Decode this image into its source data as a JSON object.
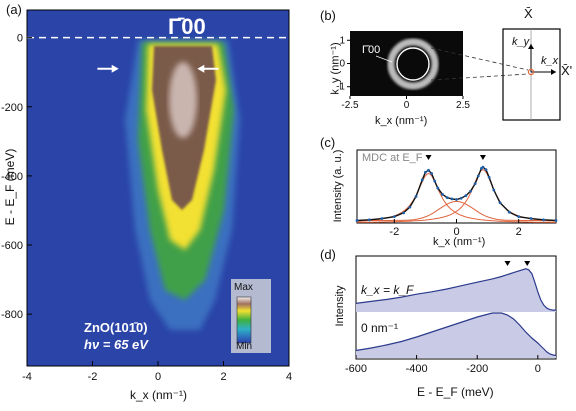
{
  "panel_labels": [
    "(a)",
    "(b)",
    "(c)",
    "(d)"
  ],
  "colors": {
    "band_bg": "#2a44a8",
    "band_mid": "#3fa04a",
    "band_high": "#f2e030",
    "band_peak": "#7a5a4a",
    "mdc_data": "#1f5fa8",
    "mdc_fit": "#111111",
    "mdc_components": "#e0643c",
    "edc_fill": "#c9cbe6",
    "edc_line": "#2b3a8c"
  },
  "chart_data": [
    {
      "panel": "a",
      "type": "heatmap",
      "title": "Γ̄00",
      "xlabel": "k_x (nm⁻¹)",
      "ylabel": "E - E_F (meV)",
      "xlim": [
        -4,
        4
      ],
      "ylim": [
        -950,
        80
      ],
      "x_ticks": [
        "-4",
        "-2",
        "0",
        "2",
        "4"
      ],
      "y_ticks": [
        "0",
        "-200",
        "-400",
        "-600",
        "-800"
      ],
      "fermi_level_meV": 0,
      "kF_markers_meV": -90,
      "annotation_lines": [
        "ZnO(101̄0)",
        "hν = 65 eV"
      ],
      "colorbar": {
        "max_label": "Max",
        "min_label": "Min"
      }
    },
    {
      "panel": "b",
      "type": "heatmap",
      "xlabel": "k_x (nm⁻¹)",
      "ylabel": "k_y (nm⁻¹)",
      "xlim": [
        -2.5,
        2.5
      ],
      "ylim": [
        -1.4,
        1.4
      ],
      "x_ticks": [
        "-2.5",
        "0",
        "2.5"
      ],
      "y_ticks": [
        "1",
        "0",
        "-1"
      ],
      "point_label": "Γ̄00",
      "fermi_surface_radius": 0.9,
      "bz_labels": {
        "top": "X̄",
        "right": "X̄'",
        "ky": "k_y",
        "kx": "k_x"
      }
    },
    {
      "panel": "c",
      "type": "line",
      "legend": "MDC at E_F",
      "xlabel": "k_x (nm⁻¹)",
      "ylabel": "Intensity (a. u.)",
      "xlim": [
        -3.2,
        3.2
      ],
      "ylim": [
        0,
        1.15
      ],
      "x_ticks": [
        "-2",
        "0",
        "2"
      ],
      "peaks_kx": [
        -0.9,
        0.85
      ],
      "series": [
        {
          "x": [
            -3.2,
            -2.8,
            -2.4,
            -2.0,
            -1.7,
            -1.5,
            -1.3,
            -1.1,
            -1.0,
            -0.9,
            -0.8,
            -0.7,
            -0.6,
            -0.45,
            -0.3,
            -0.15,
            0,
            0.15,
            0.3,
            0.45,
            0.6,
            0.7,
            0.8,
            0.85,
            0.95,
            1.05,
            1.2,
            1.4,
            1.7,
            2.0,
            2.4,
            2.8,
            3.2
          ],
          "y": [
            0.04,
            0.05,
            0.07,
            0.1,
            0.16,
            0.25,
            0.42,
            0.68,
            0.8,
            0.83,
            0.78,
            0.66,
            0.55,
            0.45,
            0.4,
            0.38,
            0.37,
            0.39,
            0.43,
            0.5,
            0.62,
            0.74,
            0.86,
            0.88,
            0.84,
            0.72,
            0.52,
            0.32,
            0.17,
            0.1,
            0.07,
            0.05,
            0.04
          ]
        }
      ]
    },
    {
      "panel": "d",
      "type": "area",
      "xlabel": "E - E_F (meV)",
      "ylabel": "Intensity",
      "xlim": [
        -600,
        60
      ],
      "x_ticks": [
        "-600",
        "-400",
        "-200",
        "0"
      ],
      "markers_meV": [
        -100,
        -35
      ],
      "series": [
        {
          "name": "k_x = k_F",
          "x": [
            -600,
            -550,
            -500,
            -450,
            -400,
            -350,
            -300,
            -250,
            -200,
            -150,
            -120,
            -100,
            -80,
            -60,
            -40,
            -30,
            -20,
            -10,
            0,
            10,
            20,
            30,
            40,
            50,
            60
          ],
          "y": [
            0.18,
            0.22,
            0.26,
            0.31,
            0.37,
            0.42,
            0.48,
            0.55,
            0.62,
            0.69,
            0.74,
            0.78,
            0.82,
            0.86,
            0.9,
            0.88,
            0.8,
            0.62,
            0.42,
            0.25,
            0.14,
            0.08,
            0.05,
            0.04,
            0.04
          ]
        },
        {
          "name": "0 nm⁻¹",
          "x": [
            -600,
            -550,
            -500,
            -450,
            -400,
            -350,
            -300,
            -250,
            -200,
            -150,
            -120,
            -100,
            -80,
            -60,
            -40,
            -20,
            0,
            10,
            20,
            30,
            40,
            50,
            60
          ],
          "y": [
            0.15,
            0.2,
            0.26,
            0.33,
            0.42,
            0.52,
            0.62,
            0.72,
            0.82,
            0.9,
            0.9,
            0.86,
            0.78,
            0.66,
            0.52,
            0.4,
            0.3,
            0.24,
            0.18,
            0.12,
            0.08,
            0.06,
            0.05
          ]
        }
      ]
    }
  ]
}
